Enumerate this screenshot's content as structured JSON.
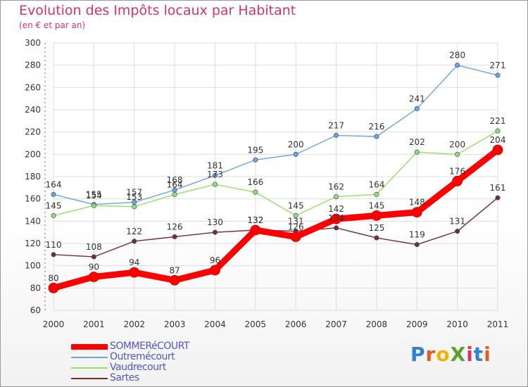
{
  "header": {
    "title": "Evolution des Impôts locaux par Habitant",
    "subtitle": "(en € et par an)"
  },
  "brand": {
    "logo_text": "ProXiti",
    "letter_colors": [
      "#2e7fd8",
      "#e85a1b",
      "#f0b400",
      "#5aa02c",
      "#d6336c",
      "#2e7fd8",
      "#e85a1b"
    ]
  },
  "colors": {
    "title": "#d6336c",
    "axis_text": "#333333",
    "grid": "#dddddd",
    "legend_text": "#5555cc"
  },
  "chart_data": {
    "type": "line",
    "title": "Evolution des Impôts locaux par Habitant",
    "subtitle": "(en € et par an)",
    "xlabel": "",
    "ylabel": "",
    "ylim": [
      60,
      300
    ],
    "yticks": [
      60,
      80,
      100,
      120,
      140,
      160,
      180,
      200,
      220,
      240,
      260,
      280,
      300
    ],
    "grid": true,
    "legend_position": "bottom-left",
    "x": [
      "2000",
      "2001",
      "2002",
      "2003",
      "2004",
      "2005",
      "2006",
      "2007",
      "2008",
      "2009",
      "2010",
      "2011"
    ],
    "series": [
      {
        "name": "SOMMERéCOURT",
        "color": "#ff0000",
        "values": [
          80,
          90,
          94,
          87,
          96,
          132,
          126,
          142,
          145,
          148,
          176,
          204
        ],
        "labels": [
          "80",
          "90",
          "94",
          "87",
          "96",
          "132",
          "126",
          "142",
          "145",
          "148",
          "176",
          "204"
        ]
      },
      {
        "name": "Outremécourt",
        "color": "#6ca6d8",
        "values": [
          164,
          155,
          157,
          168,
          181,
          195,
          200,
          217,
          216,
          241,
          280,
          271
        ],
        "labels": [
          "164",
          "155",
          "157",
          "168",
          "181",
          "195",
          "200",
          "217",
          "216",
          "241",
          "280",
          "271"
        ]
      },
      {
        "name": "Vaudrecourt",
        "color": "#99dd66",
        "values": [
          145,
          154,
          153,
          164,
          173,
          166,
          145,
          162,
          164,
          202,
          200,
          221
        ],
        "labels": [
          "145",
          "154",
          "153",
          "164",
          "173",
          "166",
          "145",
          "162",
          "164",
          "202",
          "200",
          "221"
        ]
      },
      {
        "name": "Sartes",
        "color": "#7a2b2b",
        "values": [
          110,
          108,
          122,
          126,
          130,
          132,
          131,
          134,
          125,
          119,
          131,
          161
        ],
        "labels": [
          "110",
          "108",
          "122",
          "126",
          "130",
          "132",
          "131",
          "134",
          "125",
          "119",
          "131",
          "161"
        ]
      }
    ]
  }
}
